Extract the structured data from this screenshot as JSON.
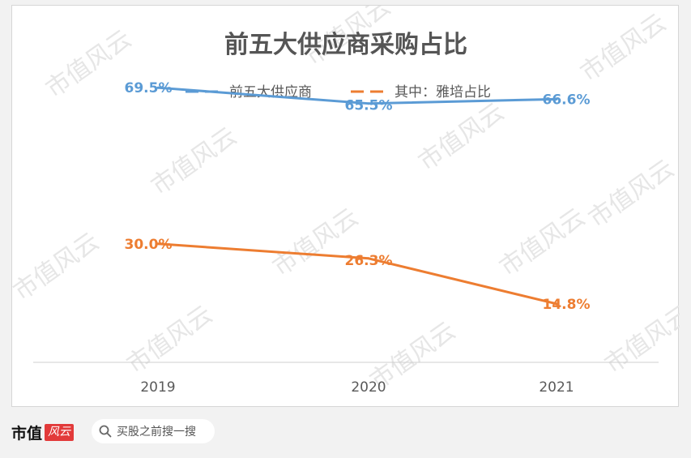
{
  "chart_data": {
    "type": "line",
    "title": "前五大供应商采购占比",
    "categories": [
      "2019",
      "2020",
      "2021"
    ],
    "series": [
      {
        "name": "前五大供应商",
        "values": [
          69.5,
          65.5,
          66.6
        ],
        "labels": [
          "69.5%",
          "65.5%",
          "66.6%"
        ],
        "color": "#5b9bd5",
        "line_style": "solid"
      },
      {
        "name": "其中：雅培占比",
        "values": [
          30.0,
          26.3,
          14.8
        ],
        "labels": [
          "30.0%",
          "26.3%",
          "14.8%"
        ],
        "color": "#ed7d31",
        "line_style": "solid"
      }
    ],
    "ylim": [
      0,
      80
    ],
    "yaxis_visible": false,
    "grid": false,
    "legend": "top-center",
    "legend_marker": "dashed",
    "xlabel": "",
    "ylabel": ""
  },
  "watermark": {
    "text": "市值风云",
    "color": "#e6e6e6"
  },
  "footer": {
    "brand_name": "市值",
    "brand_badge": "风云",
    "search_text": "买股之前搜一搜",
    "search_icon": "search-icon"
  }
}
